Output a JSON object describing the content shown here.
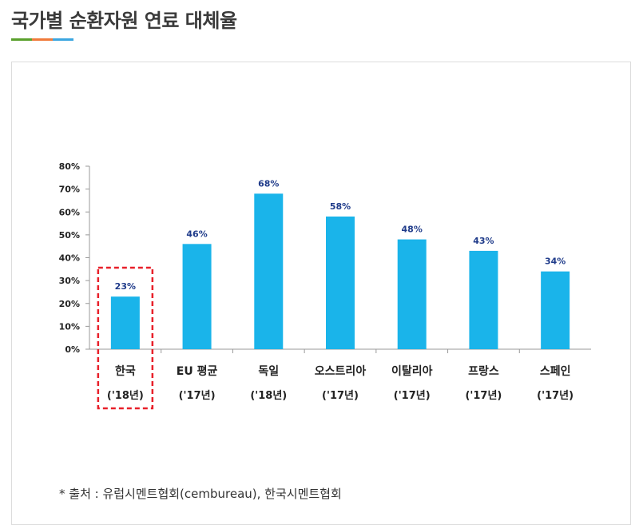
{
  "page": {
    "title": "국가별 순환자원 연료 대체율",
    "underline_colors": [
      "#5aa02c",
      "#f07a3a",
      "#3ba6e0"
    ],
    "source_note": "* 출처 : 유럽시멘트협회(cembureau), 한국시멘트협회"
  },
  "chart_data": {
    "type": "bar",
    "title": "",
    "xlabel": "",
    "ylabel": "",
    "ylim": [
      0,
      80
    ],
    "yticks": [
      0,
      10,
      20,
      30,
      40,
      50,
      60,
      70,
      80
    ],
    "ytick_labels": [
      "0%",
      "10%",
      "20%",
      "30%",
      "40%",
      "50%",
      "60%",
      "70%",
      "80%"
    ],
    "categories": [
      "한국",
      "EU 평균",
      "독일",
      "오스트리아",
      "이탈리아",
      "프랑스",
      "스페인"
    ],
    "category_years": [
      "('18년)",
      "('17년)",
      "('18년)",
      "('17년)",
      "('17년)",
      "('17년)",
      "('17년)"
    ],
    "values": [
      23,
      46,
      68,
      58,
      48,
      43,
      34
    ],
    "value_labels": [
      "23%",
      "46%",
      "68%",
      "58%",
      "48%",
      "43%",
      "34%"
    ],
    "highlight_index": 0,
    "bar_color": "#1ab4ea",
    "value_label_color": "#1f3b8a",
    "highlight_color": "#e8202a",
    "grid": false,
    "legend": "none"
  }
}
